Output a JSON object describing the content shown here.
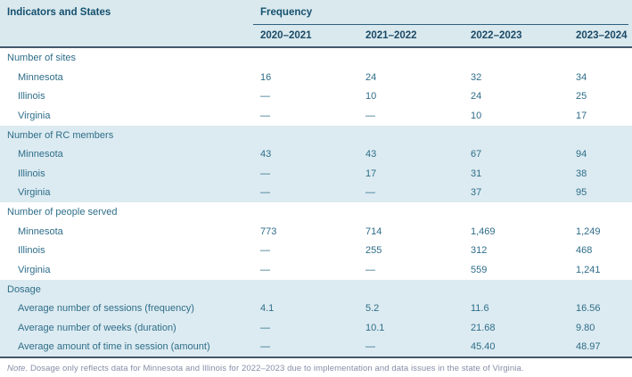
{
  "colors": {
    "header_band": "#d9e9ee",
    "shaded_band": "#dcebf1",
    "header_text": "#15506e",
    "body_text": "#2e6d89",
    "rule_dark": "#45586b",
    "note_text": "#878ea6"
  },
  "table": {
    "col_group_label": "Indicators and States",
    "freq_label": "Frequency",
    "years": [
      "2020–2021",
      "2021–2022",
      "2022–2023",
      "2023–2024"
    ],
    "sections": [
      {
        "title": "Number of sites",
        "rows": [
          {
            "label": "Minnesota",
            "values": [
              "16",
              "24",
              "32",
              "34"
            ]
          },
          {
            "label": "Illinois",
            "values": [
              "—",
              "10",
              "24",
              "25"
            ]
          },
          {
            "label": "Virginia",
            "values": [
              "—",
              "—",
              "10",
              "17"
            ]
          }
        ]
      },
      {
        "title": "Number of RC members",
        "rows": [
          {
            "label": "Minnesota",
            "values": [
              "43",
              "43",
              "67",
              "94"
            ]
          },
          {
            "label": "Illinois",
            "values": [
              "—",
              "17",
              "31",
              "38"
            ]
          },
          {
            "label": "Virginia",
            "values": [
              "—",
              "—",
              "37",
              "95"
            ]
          }
        ]
      },
      {
        "title": "Number of people served",
        "rows": [
          {
            "label": "Minnesota",
            "values": [
              "773",
              "714",
              "1,469",
              "1,249"
            ]
          },
          {
            "label": "Illinois",
            "values": [
              "—",
              "255",
              "312",
              "468"
            ]
          },
          {
            "label": "Virginia",
            "values": [
              "—",
              "—",
              "559",
              "1,241"
            ]
          }
        ]
      },
      {
        "title": "Dosage",
        "rows": [
          {
            "label": "Average number of sessions (frequency)",
            "values": [
              "4.1",
              "5.2",
              "11.6",
              "16.56"
            ]
          },
          {
            "label": "Average number of weeks (duration)",
            "values": [
              "—",
              "10.1",
              "21.68",
              "9.80"
            ]
          },
          {
            "label": "Average amount of time in session (amount)",
            "values": [
              "—",
              "—",
              "45.40",
              "48.97"
            ]
          }
        ]
      }
    ],
    "note": {
      "prefix": "Note.",
      "body": " Dosage only reflects data for Minnesota and Illinois for 2022–2023 due to implementation and data issues in the state of Virginia."
    }
  }
}
